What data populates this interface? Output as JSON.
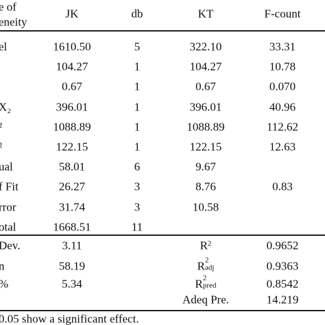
{
  "table": {
    "header": {
      "source": [
        "e of",
        "eneity"
      ],
      "columns": [
        "JK",
        "db",
        "KT",
        "F-count"
      ]
    },
    "rows": [
      {
        "source": "el",
        "JK": "1610.50",
        "db": "5",
        "KT": "322.10",
        "F": "33.31"
      },
      {
        "JK": "104.27",
        "db": "1",
        "KT": "104.27",
        "F": "10.78"
      },
      {
        "JK": "0.67",
        "db": "1",
        "KT": "0.67",
        "F": "0.070"
      },
      {
        "source": "X₂",
        "JK": "396.01",
        "db": "1",
        "KT": "396.01",
        "F": "40.96"
      },
      {
        "source": "²",
        "JK": "1088.89",
        "db": "1",
        "KT": "1088.89",
        "F": "112.62"
      },
      {
        "source": "²",
        "JK": "122.15",
        "db": "1",
        "KT": "122.15",
        "F": "12.63"
      },
      {
        "source": "ual",
        "JK": "58.01",
        "db": "6",
        "KT": "9.67"
      },
      {
        "source": "f Fit",
        "JK": "26.27",
        "db": "3",
        "KT": "8.76",
        "F": "0.83"
      },
      {
        "source": "rror",
        "JK": "31.74",
        "db": "3",
        "KT": "10.58"
      },
      {
        "source": "otal",
        "JK": "1668.51",
        "db": "11"
      }
    ],
    "summary": [
      {
        "source": "Dev.",
        "JK": "3.11",
        "stat": {
          "base": "R",
          "sup": "2"
        },
        "value": "0.9652"
      },
      {
        "source": "n",
        "JK": "58.19",
        "stat": {
          "base": "R",
          "sup": "2",
          "sub": "adj"
        },
        "value": "0.9363"
      },
      {
        "source": "%",
        "JK": "5.34",
        "stat": {
          "base": "R",
          "sup": "2",
          "sub": "pred"
        },
        "value": "0.8542"
      },
      {
        "stat": {
          "base": "Adeq Pre."
        },
        "value": "14.219"
      }
    ]
  },
  "footnote": "0.05 show a significant effect."
}
